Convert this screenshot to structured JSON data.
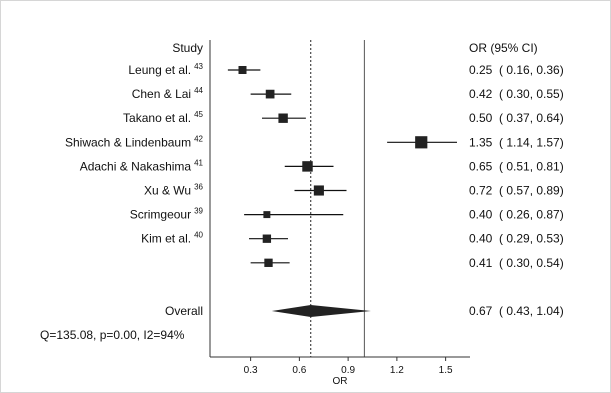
{
  "chart_data": {
    "type": "forest",
    "left_header": "Study",
    "right_header": "OR (95% CI)",
    "xlabel": "OR",
    "xlim": [
      0.05,
      1.65
    ],
    "xticks": [
      "0.3",
      "0.6",
      "0.9",
      "1.2",
      "1.5"
    ],
    "xtick_values": [
      0.3,
      0.6,
      0.9,
      1.2,
      1.5
    ],
    "null_line": 1.0,
    "pooled_line": 0.67,
    "studies": [
      {
        "name": "Leung et al.",
        "ref": "43",
        "or": 0.25,
        "lo": 0.16,
        "hi": 0.36,
        "ci_text": "0.25  ( 0.16, 0.36)",
        "weight": 1.0
      },
      {
        "name": "Chen & Lai",
        "ref": "44",
        "or": 0.42,
        "lo": 0.3,
        "hi": 0.55,
        "ci_text": "0.42  ( 0.30, 0.55)",
        "weight": 1.1
      },
      {
        "name": "Takano et al.",
        "ref": "45",
        "or": 0.5,
        "lo": 0.37,
        "hi": 0.64,
        "ci_text": "0.50  ( 0.37, 0.64)",
        "weight": 1.2
      },
      {
        "name": "Shiwach & Lindenbaum",
        "ref": "42",
        "or": 1.35,
        "lo": 1.14,
        "hi": 1.57,
        "ci_text": "1.35  ( 1.14, 1.57)",
        "weight": 1.6
      },
      {
        "name": "Adachi & Nakashima",
        "ref": "41",
        "or": 0.65,
        "lo": 0.51,
        "hi": 0.81,
        "ci_text": "0.65  ( 0.51, 0.81)",
        "weight": 1.35
      },
      {
        "name": "Xu & Wu",
        "ref": "36",
        "or": 0.72,
        "lo": 0.57,
        "hi": 0.89,
        "ci_text": "0.72  ( 0.57, 0.89)",
        "weight": 1.3
      },
      {
        "name": "Scrimgeour",
        "ref": "39",
        "or": 0.4,
        "lo": 0.26,
        "hi": 0.87,
        "ci_text": "0.40  ( 0.26, 0.87)",
        "weight": 0.85
      },
      {
        "name": "Kim et al.",
        "ref": "40",
        "or": 0.4,
        "lo": 0.29,
        "hi": 0.53,
        "ci_text": "0.40  ( 0.29, 0.53)",
        "weight": 1.05
      },
      {
        "name": "",
        "ref": "",
        "or": 0.41,
        "lo": 0.3,
        "hi": 0.54,
        "ci_text": "0.41  ( 0.30, 0.54)",
        "weight": 1.05
      }
    ],
    "overall": {
      "name": "Overall",
      "or": 0.67,
      "lo": 0.43,
      "hi": 1.04,
      "ci_text": "0.67  ( 0.43, 1.04)"
    },
    "heterogeneity": "Q=135.08, p=0.00, I2=94%"
  }
}
